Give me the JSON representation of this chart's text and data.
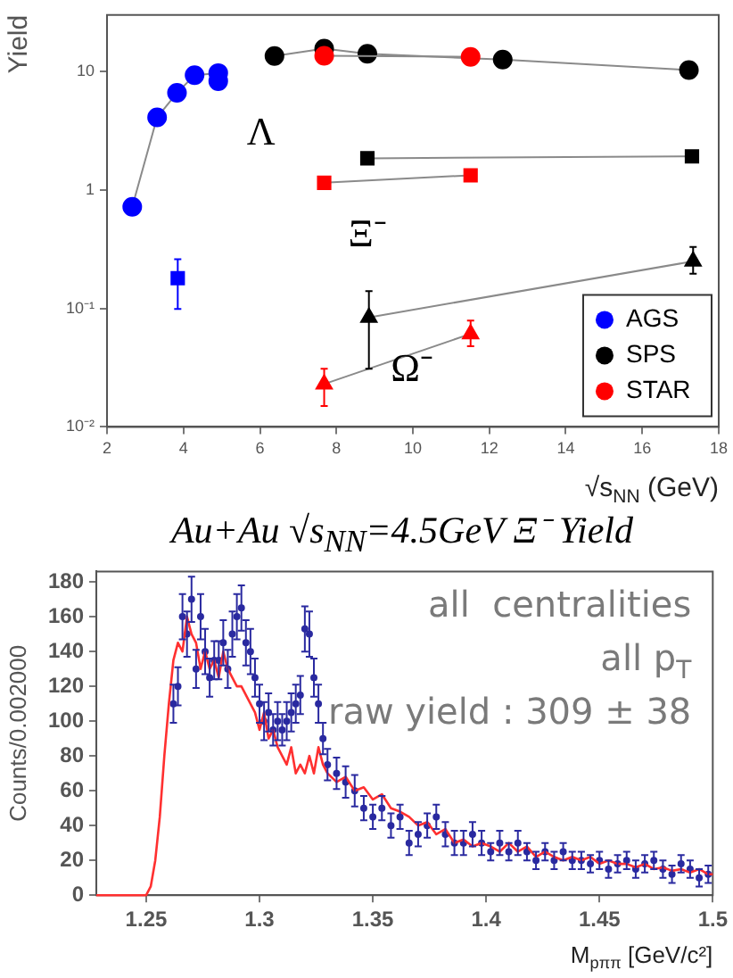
{
  "chart_data": [
    {
      "type": "line",
      "xlabel": "√s$_{NN}$ (GeV)",
      "ylabel": "Yield",
      "log": "y",
      "grid": false,
      "legend": "bottom right",
      "line_style": "solid",
      "xlim": [
        2,
        18
      ],
      "xticks": [
        2,
        4,
        6,
        8,
        10,
        12,
        14,
        16,
        18
      ],
      "ylim": [
        0.01,
        30
      ],
      "yticks": [
        {
          "value": 0.01,
          "label": "10⁻²"
        },
        {
          "value": 0.1,
          "label": "10⁻¹"
        },
        1,
        10
      ],
      "annotations": [
        {
          "text": "Λ",
          "x": 4.91,
          "y": 8.3
        },
        {
          "text": "Ξ⁻",
          "x": 7.68,
          "y": 1.15
        },
        {
          "text": "Ω⁻",
          "x": 8.85,
          "y": 0.084
        }
      ],
      "series": [
        {
          "name": "AGS",
          "color": "#0000ff",
          "marker": "circle",
          "x": [
            2.66,
            3.31,
            3.83,
            4.29,
            4.91,
            4.91
          ],
          "values": [
            0.72,
            4.1,
            6.6,
            9.3,
            9.7,
            8.3
          ]
        },
        {
          "name": "SPS",
          "color": "#000000",
          "marker": "circle",
          "x": [
            6.38,
            7.68,
            8.81,
            12.35,
            17.22
          ],
          "values": [
            13.5,
            15.6,
            14.1,
            12.6,
            10.3
          ]
        },
        {
          "name": "STAR",
          "color": "#ff0000",
          "marker": "circle",
          "x": [
            7.68,
            11.51
          ],
          "values": [
            13.6,
            13.3
          ]
        },
        {
          "color": "#0000ff",
          "marker": "square",
          "x": [
            3.85
          ],
          "values": [
            0.18
          ],
          "errors": [
            [
              0.099,
              0.26
            ]
          ]
        },
        {
          "color": "#000000",
          "marker": "square",
          "x": [
            8.81,
            17.3
          ],
          "values": [
            1.85,
            1.92
          ]
        },
        {
          "color": "#ff0000",
          "marker": "square",
          "x": [
            7.68,
            11.51
          ],
          "values": [
            1.15,
            1.33
          ]
        },
        {
          "color": "#000000",
          "marker": "triangle",
          "x": [
            8.85,
            17.33
          ],
          "values": [
            0.084,
            0.25
          ],
          "errors": [
            [
              0.031,
              0.14
            ],
            [
              0.196,
              0.33
            ]
          ]
        },
        {
          "color": "#ff0000",
          "marker": "triangle",
          "x": [
            7.68,
            11.51
          ],
          "values": [
            0.023,
            0.061
          ],
          "errors": [
            [
              0.015,
              0.031
            ],
            [
              0.048,
              0.079
            ]
          ]
        }
      ]
    },
    {
      "type": "line",
      "title": "Au+Au √s$_{NN}$=4.5GeV Ξ⁻ Yield",
      "xlabel": "M$_{pππ}$ [GeV/c²]",
      "ylabel": "Counts/0.002000",
      "grid": false,
      "xlim": [
        1.228,
        1.5
      ],
      "xticks": [
        1.25,
        {
          "value": 1.3,
          "label": "1.3"
        },
        1.35,
        {
          "value": 1.4,
          "label": "1.4"
        },
        1.45,
        {
          "value": 1.5,
          "label": "1.5"
        }
      ],
      "ylim": [
        0,
        186
      ],
      "yticks": [
        0,
        20,
        40,
        60,
        80,
        100,
        120,
        140,
        160,
        180
      ],
      "annotations": [
        "all  centralities",
        "all p$_{T}$",
        "raw yield : 309 ± 38"
      ],
      "series": [
        {
          "type": "scatter",
          "color": "#2a2aa0",
          "marker": "circle",
          "x": [
            1.262,
            1.264,
            1.266,
            1.268,
            1.27,
            1.272,
            1.274,
            1.276,
            1.278,
            1.28,
            1.282,
            1.284,
            1.286,
            1.288,
            1.29,
            1.292,
            1.294,
            1.296,
            1.298,
            1.3,
            1.302,
            1.304,
            1.306,
            1.308,
            1.31,
            1.312,
            1.314,
            1.316,
            1.318,
            1.32,
            1.322,
            1.324,
            1.326,
            1.328,
            1.33,
            1.334,
            1.338,
            1.342,
            1.346,
            1.35,
            1.354,
            1.358,
            1.362,
            1.366,
            1.37,
            1.374,
            1.378,
            1.382,
            1.386,
            1.39,
            1.394,
            1.398,
            1.402,
            1.406,
            1.41,
            1.414,
            1.418,
            1.422,
            1.426,
            1.43,
            1.434,
            1.438,
            1.442,
            1.446,
            1.45,
            1.454,
            1.458,
            1.462,
            1.466,
            1.47,
            1.474,
            1.478,
            1.482,
            1.486,
            1.49,
            1.494,
            1.498
          ],
          "values": [
            110,
            120,
            160,
            150,
            170,
            130,
            160,
            140,
            125,
            135,
            135,
            145,
            130,
            150,
            160,
            165,
            145,
            140,
            125,
            110,
            100,
            105,
            95,
            100,
            95,
            100,
            105,
            110,
            115,
            153,
            150,
            125,
            110,
            90,
            75,
            70,
            65,
            60,
            50,
            45,
            50,
            40,
            45,
            30,
            35,
            40,
            45,
            35,
            30,
            30,
            35,
            30,
            25,
            30,
            25,
            30,
            25,
            20,
            25,
            20,
            25,
            20,
            20,
            18,
            20,
            15,
            18,
            20,
            15,
            18,
            20,
            15,
            12,
            18,
            15,
            10,
            12
          ],
          "errors": [
            11,
            11,
            13,
            13,
            13,
            11,
            13,
            13,
            11,
            11,
            11,
            13,
            11,
            13,
            13,
            13,
            13,
            13,
            11,
            11,
            11,
            11,
            9,
            11,
            9,
            11,
            11,
            11,
            11,
            13,
            13,
            11,
            11,
            9,
            9,
            9,
            9,
            9,
            7,
            7,
            7,
            7,
            7,
            7,
            7,
            7,
            7,
            7,
            7,
            7,
            7,
            7,
            5,
            7,
            5,
            7,
            5,
            5,
            5,
            5,
            5,
            5,
            5,
            5,
            5,
            5,
            5,
            5,
            5,
            5,
            5,
            5,
            5,
            5,
            5,
            5,
            5
          ]
        },
        {
          "type": "line",
          "color": "#ff3030",
          "marker": "none",
          "x": [
            1.228,
            1.25,
            1.252,
            1.254,
            1.256,
            1.258,
            1.26,
            1.262,
            1.264,
            1.266,
            1.268,
            1.27,
            1.272,
            1.274,
            1.276,
            1.278,
            1.28,
            1.282,
            1.284,
            1.286,
            1.288,
            1.29,
            1.292,
            1.294,
            1.296,
            1.298,
            1.3,
            1.302,
            1.304,
            1.306,
            1.308,
            1.31,
            1.312,
            1.314,
            1.316,
            1.318,
            1.32,
            1.322,
            1.324,
            1.326,
            1.328,
            1.33,
            1.334,
            1.338,
            1.342,
            1.346,
            1.35,
            1.354,
            1.358,
            1.362,
            1.366,
            1.37,
            1.374,
            1.378,
            1.382,
            1.386,
            1.39,
            1.394,
            1.398,
            1.402,
            1.406,
            1.41,
            1.414,
            1.418,
            1.422,
            1.426,
            1.43,
            1.434,
            1.438,
            1.442,
            1.446,
            1.45,
            1.454,
            1.458,
            1.462,
            1.466,
            1.47,
            1.474,
            1.478,
            1.482,
            1.486,
            1.49,
            1.494,
            1.498,
            1.5
          ],
          "values": [
            0,
            0,
            5,
            20,
            45,
            80,
            110,
            135,
            145,
            140,
            160,
            150,
            145,
            130,
            140,
            130,
            135,
            125,
            140,
            130,
            125,
            120,
            120,
            115,
            110,
            105,
            95,
            105,
            90,
            95,
            85,
            80,
            75,
            85,
            70,
            75,
            70,
            80,
            70,
            85,
            75,
            70,
            65,
            68,
            60,
            62,
            55,
            58,
            50,
            48,
            45,
            40,
            42,
            35,
            38,
            30,
            32,
            28,
            30,
            28,
            25,
            30,
            25,
            28,
            22,
            25,
            22,
            20,
            22,
            20,
            22,
            18,
            20,
            18,
            18,
            16,
            18,
            15,
            16,
            14,
            15,
            13,
            15,
            12,
            12
          ]
        }
      ]
    }
  ]
}
